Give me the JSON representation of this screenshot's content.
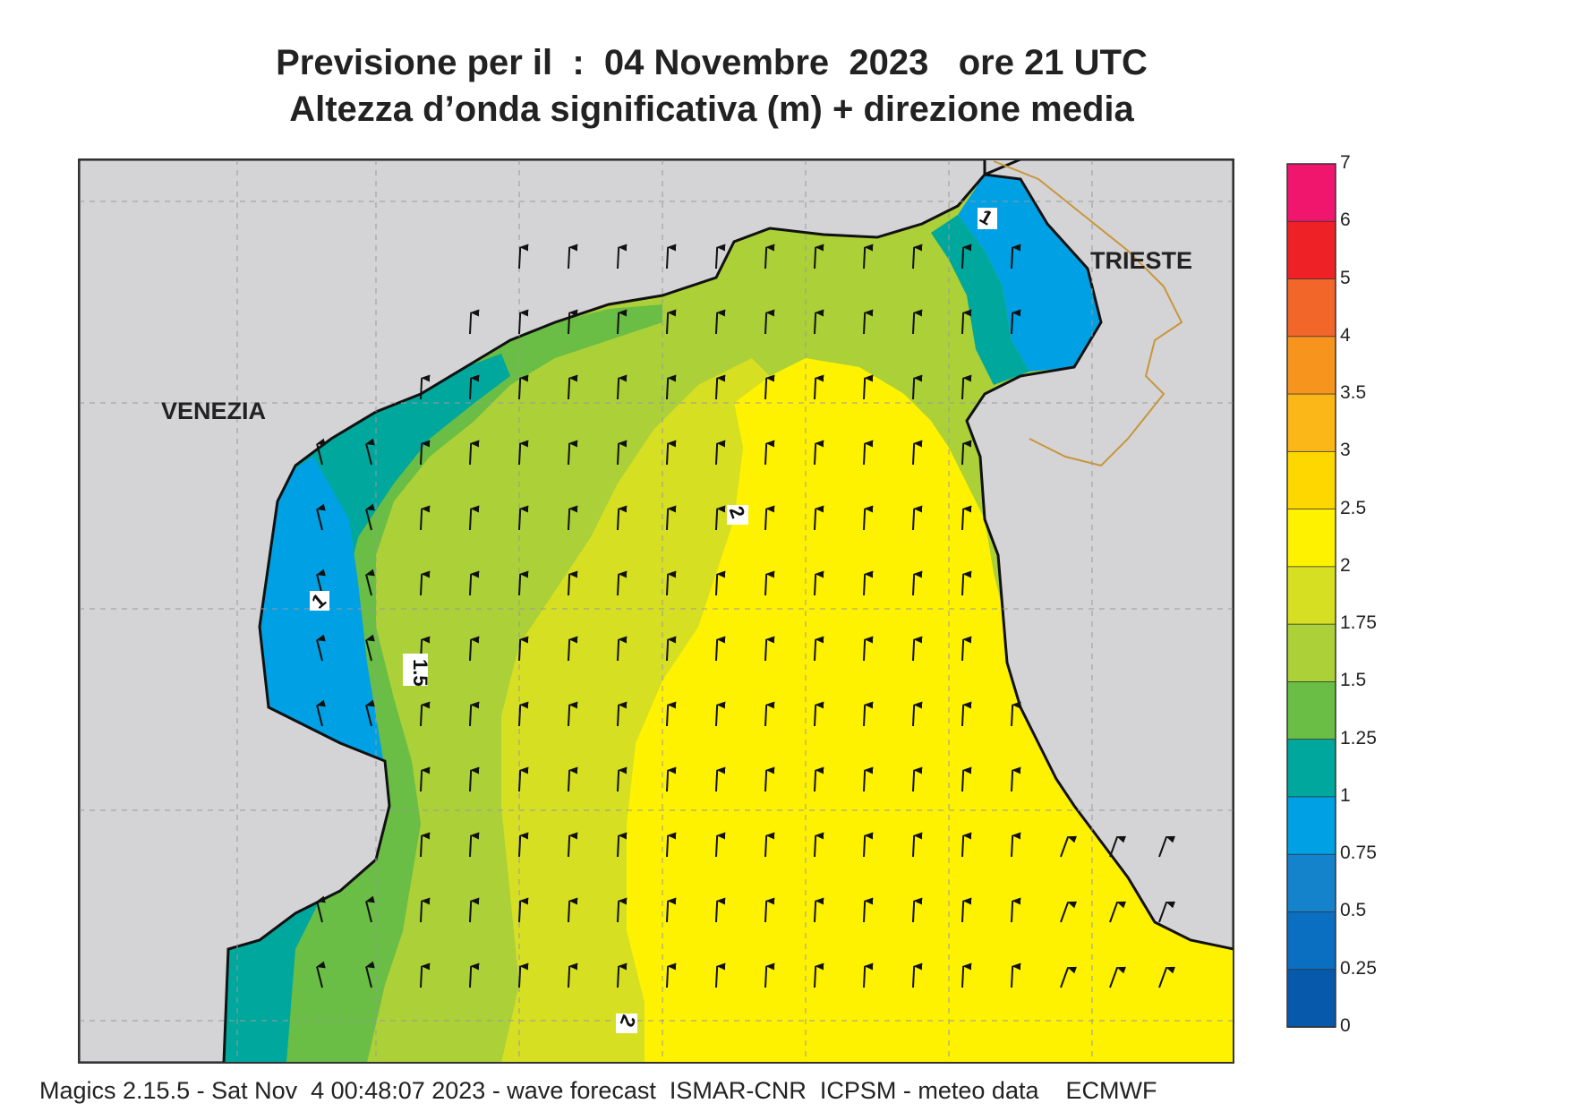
{
  "header": {
    "title_line1": "Previsione per il  :  04 Novembre  2023   ore 21 UTC",
    "title_line2": "Altezza d’onda significativa (m) + direzione media"
  },
  "map": {
    "places": [
      {
        "name": "VENEZIA"
      },
      {
        "name": "TRIESTE"
      }
    ],
    "contour_labels": [
      "1",
      "1",
      "1.5",
      "2",
      "2"
    ],
    "land_color": "#d4d4d6",
    "coast_color": "#111111",
    "border_color": "#c8963c"
  },
  "colorbar": {
    "levels": [
      "7",
      "6",
      "5",
      "4",
      "3.5",
      "3",
      "2.5",
      "2",
      "1.75",
      "1.5",
      "1.25",
      "1",
      "0.75",
      "0.5",
      "0.25",
      "0"
    ],
    "colors": [
      "#f0166e",
      "#ee2226",
      "#f2662a",
      "#f7941d",
      "#fbb618",
      "#fed700",
      "#fff200",
      "#d7df23",
      "#acd037",
      "#6abd45",
      "#00a79d",
      "#00a0e4",
      "#1583cc",
      "#0a6fc0",
      "#0759ab"
    ]
  },
  "footer": {
    "text": "Magics 2.15.5 - Sat Nov  4 00:48:07 2023 - wave forecast  ISMAR-CNR  ICPSM - meteo data    ECMWF"
  }
}
